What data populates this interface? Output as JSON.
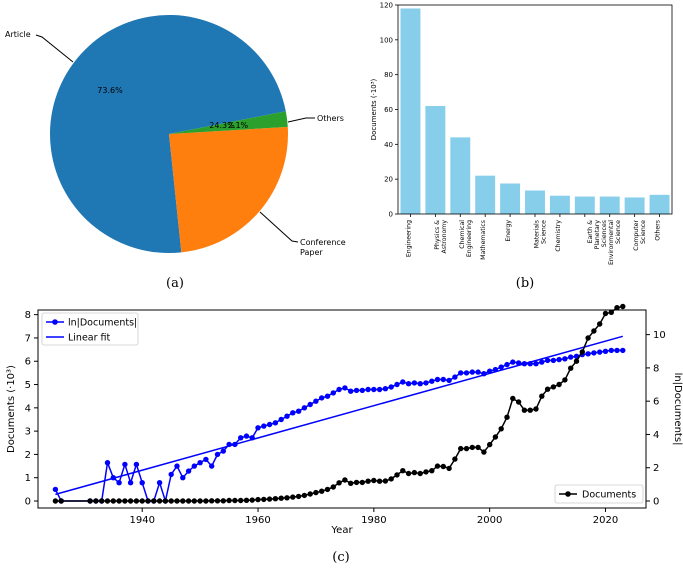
{
  "colors": {
    "pie": [
      "#1f77b4",
      "#ff7f0e",
      "#2ca02c"
    ],
    "bar": "#87ceeb",
    "ln": "#0000ff",
    "docs": "#000000"
  },
  "chart_data": [
    {
      "type": "pie",
      "caption": "(a)",
      "slices": [
        {
          "label": "Article",
          "value": 73.6,
          "pct_label": "73.6%"
        },
        {
          "label": "Conference\nPaper",
          "value": 24.3,
          "pct_label": "24.3%"
        },
        {
          "label": "Others",
          "value": 2.1,
          "pct_label": "2.1%"
        }
      ]
    },
    {
      "type": "bar",
      "caption": "(b)",
      "ylabel": "Documents (·10³)",
      "ylim": [
        0,
        120
      ],
      "yticks": [
        0,
        20,
        40,
        60,
        80,
        100,
        120
      ],
      "categories": [
        "Engineering",
        "Physics &\nAstronomy",
        "Chemical\nEngineering",
        "Mathematics",
        "Energy",
        "Materials\nScience",
        "Chemistry",
        "Earth &\nPlanetary\nSciences",
        "Environmental\nScience",
        "Computer\nScience",
        "Others"
      ],
      "values": [
        118,
        62,
        44,
        22,
        17.5,
        13.5,
        10.5,
        10,
        10,
        9.5,
        11
      ]
    },
    {
      "type": "line",
      "caption": "(c)",
      "xlabel": "Year",
      "ylabel": "Documents (·10³)",
      "y2label": "ln|Documents|",
      "xlim": [
        1922,
        2027
      ],
      "ylim": [
        -0.3,
        8.2
      ],
      "y2lim": [
        -0.42,
        11.48
      ],
      "xticks": [
        1940,
        1960,
        1980,
        2000,
        2020
      ],
      "yticks": [
        0,
        1,
        2,
        3,
        4,
        5,
        6,
        7,
        8
      ],
      "y2ticks": [
        0,
        2,
        4,
        6,
        8,
        10
      ],
      "legend_left": [
        "ln|Documents|",
        "Linear fit"
      ],
      "legend_right": [
        "Documents"
      ],
      "series": [
        {
          "name": "Documents",
          "axis": "left",
          "x": [
            1925,
            1926,
            1931,
            1932,
            1933,
            1934,
            1935,
            1936,
            1937,
            1938,
            1939,
            1940,
            1941,
            1942,
            1943,
            1944,
            1945,
            1946,
            1947,
            1948,
            1949,
            1950,
            1951,
            1952,
            1953,
            1954,
            1955,
            1956,
            1957,
            1958,
            1959,
            1960,
            1961,
            1962,
            1963,
            1964,
            1965,
            1966,
            1967,
            1968,
            1969,
            1970,
            1971,
            1972,
            1973,
            1974,
            1975,
            1976,
            1977,
            1978,
            1979,
            1980,
            1981,
            1982,
            1983,
            1984,
            1985,
            1986,
            1987,
            1988,
            1989,
            1990,
            1991,
            1992,
            1993,
            1994,
            1995,
            1996,
            1997,
            1998,
            1999,
            2000,
            2001,
            2002,
            2003,
            2004,
            2005,
            2006,
            2007,
            2008,
            2009,
            2010,
            2011,
            2012,
            2013,
            2014,
            2015,
            2016,
            2017,
            2018,
            2019,
            2020,
            2021,
            2022,
            2023
          ],
          "y": [
            0,
            0,
            0,
            0,
            0,
            0,
            0,
            0,
            0,
            0,
            0,
            0,
            0,
            0,
            0,
            0,
            0,
            0,
            0,
            0,
            0,
            0,
            0,
            0.01,
            0.01,
            0.01,
            0.02,
            0.02,
            0.02,
            0.03,
            0.04,
            0.06,
            0.07,
            0.08,
            0.1,
            0.12,
            0.14,
            0.17,
            0.2,
            0.24,
            0.3,
            0.36,
            0.42,
            0.5,
            0.6,
            0.78,
            0.9,
            0.76,
            0.8,
            0.8,
            0.85,
            0.88,
            0.85,
            0.86,
            0.95,
            1.12,
            1.3,
            1.18,
            1.22,
            1.18,
            1.25,
            1.3,
            1.5,
            1.48,
            1.4,
            1.8,
            2.25,
            2.25,
            2.3,
            2.3,
            2.1,
            2.42,
            2.75,
            3.1,
            3.6,
            4.4,
            4.25,
            3.9,
            3.9,
            3.95,
            4.5,
            4.8,
            4.9,
            5.0,
            5.2,
            5.7,
            6.0,
            6.4,
            7.0,
            7.3,
            7.6,
            8.05,
            8.1,
            8.3,
            8.35
          ]
        },
        {
          "name": "ln|Documents|",
          "axis": "right",
          "x": [
            1925,
            1926,
            1931,
            1932,
            1933,
            1934,
            1935,
            1936,
            1937,
            1938,
            1939,
            1940,
            1941,
            1942,
            1943,
            1944,
            1945,
            1946,
            1947,
            1948,
            1949,
            1950,
            1951,
            1952,
            1953,
            1954,
            1955,
            1956,
            1957,
            1958,
            1959,
            1960,
            1961,
            1962,
            1963,
            1964,
            1965,
            1966,
            1967,
            1968,
            1969,
            1970,
            1971,
            1972,
            1973,
            1974,
            1975,
            1976,
            1977,
            1978,
            1979,
            1980,
            1981,
            1982,
            1983,
            1984,
            1985,
            1986,
            1987,
            1988,
            1989,
            1990,
            1991,
            1992,
            1993,
            1994,
            1995,
            1996,
            1997,
            1998,
            1999,
            2000,
            2001,
            2002,
            2003,
            2004,
            2005,
            2006,
            2007,
            2008,
            2009,
            2010,
            2011,
            2012,
            2013,
            2014,
            2015,
            2016,
            2017,
            2018,
            2019,
            2020,
            2021,
            2022,
            2023
          ],
          "y": [
            0.7,
            0,
            0,
            0,
            0,
            2.3,
            1.4,
            1.1,
            2.2,
            1.1,
            2.2,
            1.1,
            0,
            0,
            1.1,
            0,
            1.6,
            2.1,
            1.4,
            1.8,
            2.1,
            2.3,
            2.5,
            2.1,
            2.8,
            3.0,
            3.4,
            3.4,
            3.8,
            3.9,
            3.8,
            4.4,
            4.5,
            4.6,
            4.7,
            4.9,
            5.1,
            5.3,
            5.4,
            5.6,
            5.8,
            6.0,
            6.2,
            6.3,
            6.5,
            6.7,
            6.8,
            6.6,
            6.65,
            6.65,
            6.7,
            6.7,
            6.7,
            6.75,
            6.85,
            7.0,
            7.15,
            7.05,
            7.1,
            7.05,
            7.1,
            7.2,
            7.3,
            7.3,
            7.25,
            7.45,
            7.7,
            7.7,
            7.75,
            7.75,
            7.65,
            7.8,
            7.9,
            8.05,
            8.2,
            8.35,
            8.3,
            8.25,
            8.25,
            8.25,
            8.35,
            8.45,
            8.45,
            8.5,
            8.55,
            8.65,
            8.7,
            8.8,
            8.85,
            8.9,
            8.95,
            9.0,
            9.05,
            9.05,
            9.05
          ]
        },
        {
          "name": "Linear fit",
          "axis": "right",
          "x": [
            1925,
            2023
          ],
          "y": [
            0.4,
            9.9
          ]
        }
      ]
    }
  ]
}
